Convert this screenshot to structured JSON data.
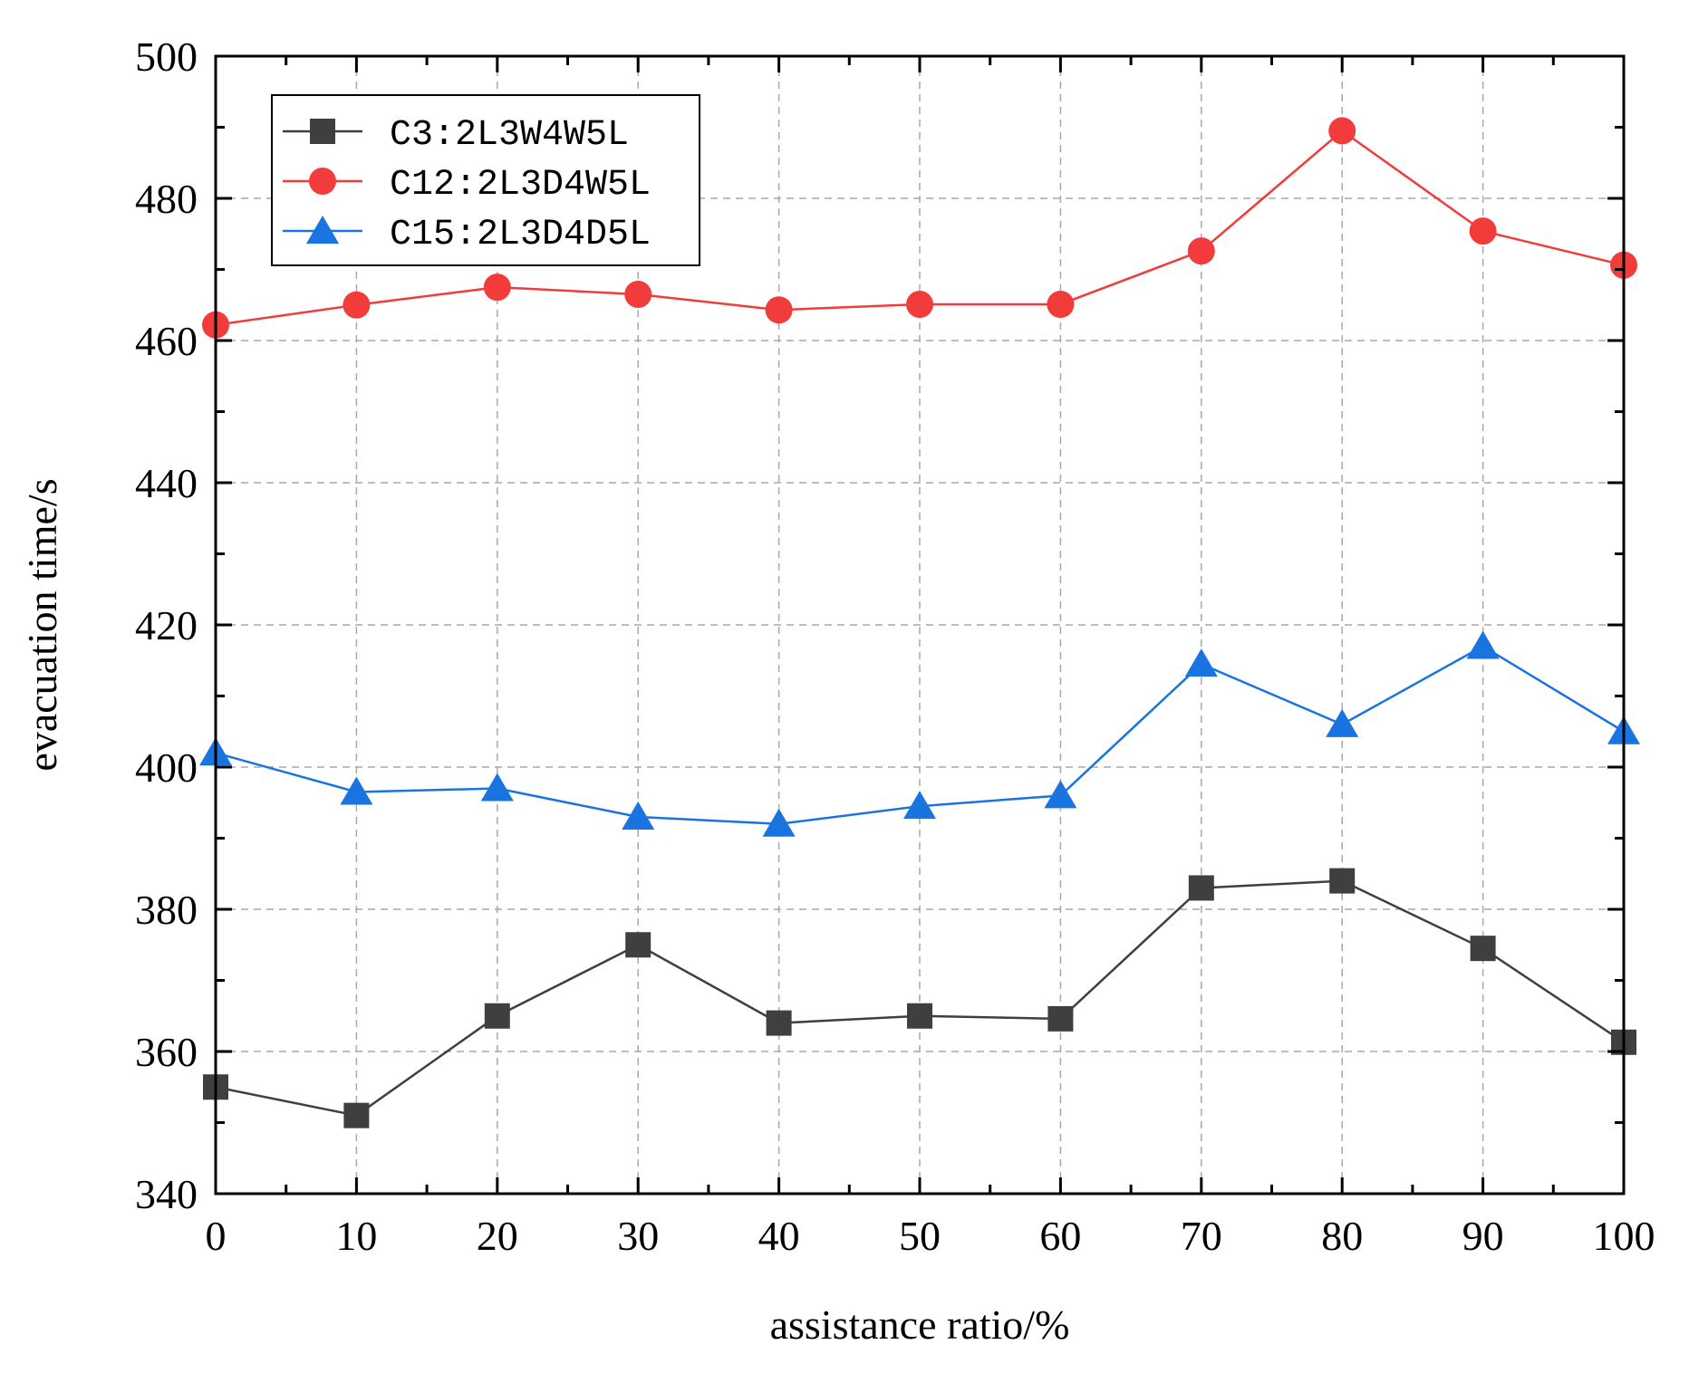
{
  "chart_data": {
    "type": "line",
    "title": "",
    "xlabel": "assistance ratio/%",
    "ylabel": "evacuation time/s",
    "x": [
      0,
      10,
      20,
      30,
      40,
      50,
      60,
      70,
      80,
      90,
      100
    ],
    "xlim": [
      0,
      100
    ],
    "ylim": [
      340,
      500
    ],
    "x_ticks": [
      0,
      10,
      20,
      30,
      40,
      50,
      60,
      70,
      80,
      90,
      100
    ],
    "y_ticks": [
      340,
      360,
      380,
      400,
      420,
      440,
      460,
      480,
      500
    ],
    "grid": true,
    "legend_position": "top-left",
    "series": [
      {
        "name": "C3:2L3W4W5L",
        "color": "#3f3f3f",
        "marker": "square",
        "values": [
          355,
          351,
          365,
          375,
          364,
          365,
          364.6,
          383,
          384,
          374.5,
          361.3
        ]
      },
      {
        "name": "C12:2L3D4W5L",
        "color": "#f23b3b",
        "marker": "circle",
        "values": [
          462.2,
          465,
          467.5,
          466.5,
          464.3,
          465.1,
          465.1,
          472.6,
          489.5,
          475.4,
          470.6
        ]
      },
      {
        "name": "C15:2L3D4D5L",
        "color": "#1a74e0",
        "marker": "triangle",
        "values": [
          402,
          396.5,
          397,
          393,
          392,
          394.5,
          396,
          414.5,
          406,
          417,
          405
        ]
      }
    ]
  }
}
